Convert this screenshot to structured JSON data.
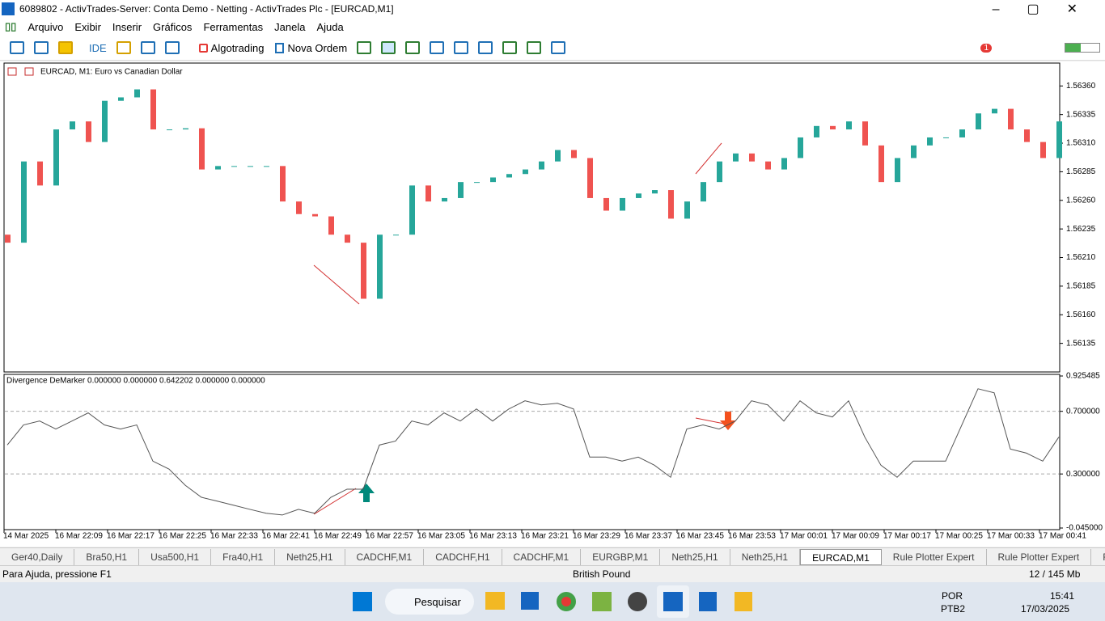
{
  "window": {
    "title": "6089802 - ActivTrades-Server: Conta Demo - Netting - ActivTrades Plc - [EURCAD,M1]"
  },
  "menu": [
    "Arquivo",
    "Exibir",
    "Inserir",
    "Gráficos",
    "Ferramentas",
    "Janela",
    "Ajuda"
  ],
  "toolbar": {
    "ide": "IDE",
    "algotrading": "Algotrading",
    "new_order": "Nova Ordem",
    "notifications": "1"
  },
  "chart": {
    "type": "candlestick",
    "header": "EURCAD, M1:  Euro vs Canadian Dollar",
    "bull_color": "#26a69a",
    "bear_color": "#ef5350",
    "open": [
      1.5623,
      1.56223,
      1.56294,
      1.56273,
      1.56322,
      1.56329,
      1.56311,
      1.56347,
      1.5635,
      1.56357,
      1.56322,
      1.56322,
      1.56323,
      1.56287,
      1.5629,
      1.5629,
      1.5629,
      1.5629,
      1.56259,
      1.56248,
      1.56246,
      1.5623,
      1.56223,
      1.56174,
      1.5623,
      1.5623,
      1.56273,
      1.56259,
      1.56262,
      1.56276,
      1.56276,
      1.5628,
      1.56283,
      1.56287,
      1.56294,
      1.56304,
      1.56297,
      1.56262,
      1.56251,
      1.56262,
      1.56266,
      1.56269,
      1.56244,
      1.56259,
      1.56276,
      1.56294,
      1.56301,
      1.56294,
      1.56287,
      1.56297,
      1.56315,
      1.56325,
      1.56322,
      1.56329,
      1.56308,
      1.56276,
      1.56297,
      1.56308,
      1.56315,
      1.56315,
      1.56322,
      1.56336,
      1.5634,
      1.56322,
      1.56311,
      1.56297
    ],
    "close": [
      1.56223,
      1.56294,
      1.56273,
      1.56322,
      1.56329,
      1.56311,
      1.56347,
      1.5635,
      1.56357,
      1.56322,
      1.56322,
      1.56323,
      1.56287,
      1.5629,
      1.5629,
      1.5629,
      1.5629,
      1.56259,
      1.56248,
      1.56246,
      1.5623,
      1.56223,
      1.56174,
      1.5623,
      1.5623,
      1.56273,
      1.56259,
      1.56262,
      1.56276,
      1.56276,
      1.5628,
      1.56283,
      1.56287,
      1.56294,
      1.56304,
      1.56297,
      1.56262,
      1.56251,
      1.56262,
      1.56266,
      1.56269,
      1.56244,
      1.56259,
      1.56276,
      1.56294,
      1.56301,
      1.56294,
      1.56287,
      1.56297,
      1.56315,
      1.56325,
      1.56322,
      1.56329,
      1.56308,
      1.56276,
      1.56297,
      1.56308,
      1.56315,
      1.56315,
      1.56322,
      1.56336,
      1.5634,
      1.56322,
      1.56311,
      1.56297,
      1.56329
    ],
    "ylim": [
      1.5611,
      1.5638
    ],
    "yticks": [
      {
        "value": 1.5636,
        "label": "1.56360"
      },
      1.56335,
      {
        "value": 1.5631,
        "label": "1.56310"
      },
      1.56285,
      {
        "value": 1.5626,
        "label": "1.56260"
      },
      1.56235,
      {
        "value": 1.5621,
        "label": "1.56210"
      },
      1.56185,
      {
        "value": 1.5616,
        "label": "1.56160"
      },
      1.56135
    ],
    "xticks": [
      "14 Mar 2025",
      "16 Mar 22:09",
      "16 Mar 22:17",
      "16 Mar 22:25",
      "16 Mar 22:33",
      "16 Mar 22:41",
      "16 Mar 22:49",
      "16 Mar 22:57",
      "16 Mar 23:05",
      "16 Mar 23:13",
      "16 Mar 23:21",
      "16 Mar 23:29",
      "16 Mar 23:37",
      "16 Mar 23:45",
      "16 Mar 23:53",
      "17 Mar 00:01",
      "17 Mar 00:09",
      "17 Mar 00:17",
      "17 Mar 00:25",
      "17 Mar 00:33",
      "17 Mar 00:41"
    ]
  },
  "indicator": {
    "type": "line",
    "name": "Divergence DeMarker 0.000000 0.000000 0.642202 0.000000 0.000000",
    "color": "#555555",
    "values": [
      0.485,
      0.613,
      0.638,
      0.587,
      0.638,
      0.69,
      0.613,
      0.587,
      0.613,
      0.382,
      0.331,
      0.228,
      0.151,
      0.126,
      0.1,
      0.074,
      0.049,
      0.038,
      0.074,
      0.049,
      0.151,
      0.203,
      0.203,
      0.485,
      0.51,
      0.638,
      0.613,
      0.69,
      0.638,
      0.715,
      0.638,
      0.715,
      0.767,
      0.741,
      0.751,
      0.715,
      0.408,
      0.408,
      0.382,
      0.408,
      0.356,
      0.279,
      0.587,
      0.613,
      0.587,
      0.638,
      0.767,
      0.741,
      0.638,
      0.767,
      0.69,
      0.664,
      0.767,
      0.536,
      0.356,
      0.279,
      0.382,
      0.382,
      0.382,
      0.613,
      0.844,
      0.818,
      0.459,
      0.433,
      0.382,
      0.536
    ],
    "ylim": [
      -0.045,
      0.925485
    ],
    "yticks": [
      0.925485,
      {
        "value": 0.7,
        "label": "0.700000"
      },
      {
        "value": 0.3,
        "label": "0.300000"
      },
      {
        "value": -0.045,
        "label": "-0.045000"
      }
    ]
  },
  "tabs": [
    "Ger40,Daily",
    "Bra50,H1",
    "Usa500,H1",
    "Fra40,H1",
    "Neth25,H1",
    "CADCHF,M1",
    "CADCHF,H1",
    "CADCHF,M1",
    "EURGBP,M1",
    "Neth25,H1",
    "Neth25,H1",
    "EURCAD,M1",
    "Rule Plotter Expert",
    "Rule Plotter Expert",
    "R"
  ],
  "status": {
    "help": "Para Ajuda, pressione F1",
    "symbol": "British Pound",
    "memory": "12 / 145 Mb"
  },
  "taskbar": {
    "search": "Pesquisar",
    "lang": "POR",
    "layout": "PTB2",
    "time": "15:41",
    "date": "17/03/2025"
  }
}
